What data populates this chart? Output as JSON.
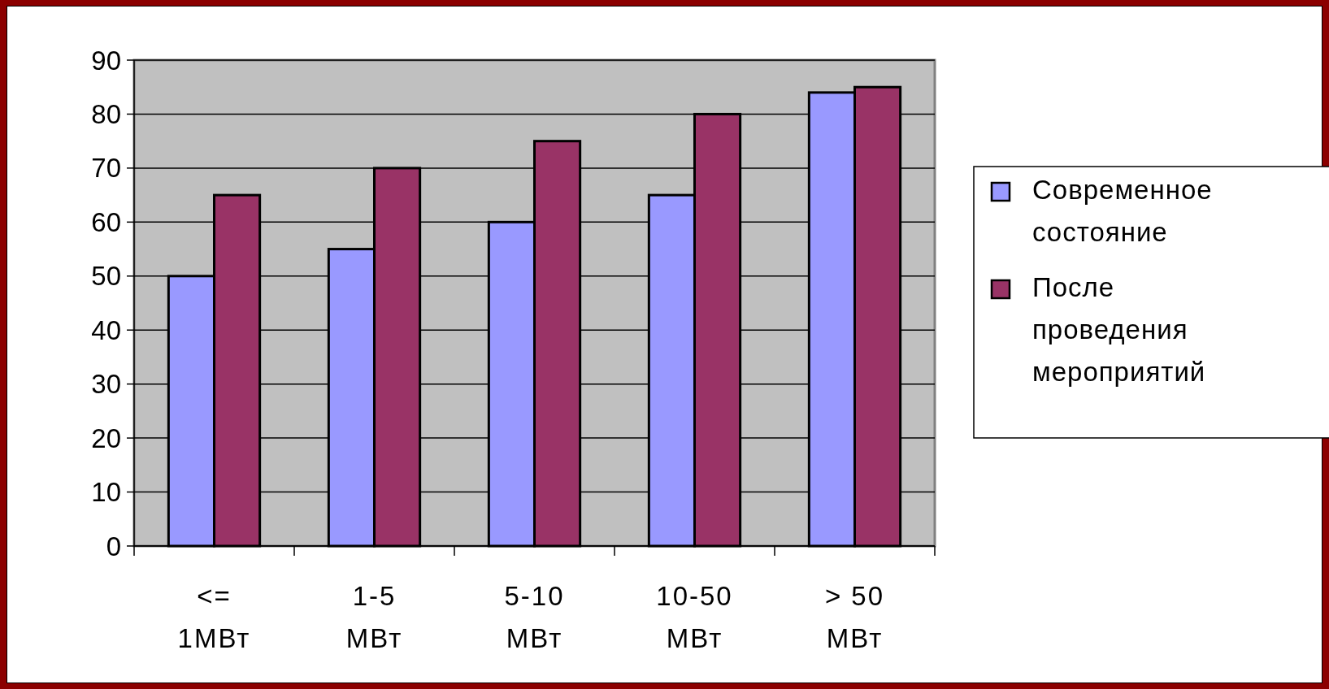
{
  "chart_data": {
    "type": "bar",
    "categories": [
      "<= 1МВт",
      "1-5 МВт",
      "5-10 МВт",
      "10-50 МВт",
      "> 50 МВт"
    ],
    "series": [
      {
        "name": "Современное состояние",
        "color": "#9999ff",
        "values": [
          50,
          55,
          60,
          65,
          84
        ]
      },
      {
        "name": "После проведения мероприятий",
        "color": "#993366",
        "values": [
          65,
          70,
          75,
          80,
          85
        ]
      }
    ],
    "ylim": [
      0,
      90
    ],
    "yticks": [
      0,
      10,
      20,
      30,
      40,
      50,
      60,
      70,
      80,
      90
    ],
    "grid": "y",
    "legend": "right"
  }
}
